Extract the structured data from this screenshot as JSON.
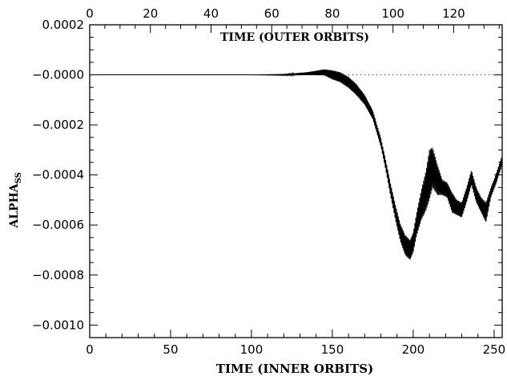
{
  "chart_data": {
    "type": "line",
    "title": "TIME (OUTER ORBITS)",
    "xlabel": "TIME (INNER ORBITS)",
    "ylabel": "ALPHA",
    "ylabel_sub": "SS",
    "xlim": [
      0,
      255
    ],
    "ylim": [
      -0.00105,
      0.0002
    ],
    "x_ticks": [
      0,
      50,
      100,
      150,
      200,
      250
    ],
    "x_tick_labels": [
      "0",
      "50",
      "100",
      "150",
      "200",
      "250"
    ],
    "x2_lim": [
      0,
      136
    ],
    "x2_ticks": [
      0,
      20,
      40,
      60,
      80,
      100,
      120
    ],
    "x2_tick_labels": [
      "0",
      "20",
      "40",
      "60",
      "80",
      "100",
      "120"
    ],
    "y_ticks": [
      0.0002,
      0.0,
      -0.0002,
      -0.0004,
      -0.0006,
      -0.0008,
      -0.001
    ],
    "y_tick_labels": [
      "0.0002",
      "−0.0000",
      "−0.0002",
      "−0.0004",
      "−0.0006",
      "−0.0008",
      "−0.0010"
    ],
    "reference_line": {
      "y": 0.0,
      "x_start": 160,
      "x_end": 255,
      "style": "dotted"
    },
    "grid": false,
    "series": [
      {
        "x": [
          0,
          20,
          40,
          60,
          80,
          100,
          120,
          135,
          145,
          150,
          155,
          160,
          165,
          170,
          175,
          180,
          183,
          186,
          189,
          192,
          195,
          198,
          200,
          202,
          205,
          208,
          210,
          212,
          215,
          218,
          221,
          224,
          227,
          230,
          233,
          236,
          239,
          242,
          245,
          248,
          251,
          254,
          255
        ],
        "y": [
          0.0,
          0.0,
          0.0,
          0.0,
          0.0,
          0.0,
          0.0,
          5e-06,
          1e-05,
          0.0,
          -1e-05,
          -3e-05,
          -6e-05,
          -0.0001,
          -0.00016,
          -0.00027,
          -0.00036,
          -0.00046,
          -0.00055,
          -0.00063,
          -0.00068,
          -0.0007,
          -0.00067,
          -0.0006,
          -0.00052,
          -0.00046,
          -0.0004,
          -0.00037,
          -0.00042,
          -0.00045,
          -0.00046,
          -0.00051,
          -0.00053,
          -0.00054,
          -0.00048,
          -0.00041,
          -0.00048,
          -0.00052,
          -0.00055,
          -0.00047,
          -0.00042,
          -0.00036,
          -0.00034
        ],
        "amplitude": [
          0.0,
          0.0,
          0.0,
          0.0,
          0.0,
          0.0,
          2e-06,
          6e-06,
          1.2e-05,
          1.8e-05,
          2e-05,
          2.2e-05,
          2.2e-05,
          2e-05,
          1.8e-05,
          1.8e-05,
          2e-05,
          2.5e-05,
          3e-05,
          3.5e-05,
          4e-05,
          4e-05,
          4e-05,
          4.5e-05,
          6e-05,
          8e-05,
          0.0001,
          8e-05,
          6e-05,
          3e-05,
          3e-05,
          4e-05,
          3e-05,
          3e-05,
          3e-05,
          3e-05,
          3e-05,
          3e-05,
          4e-05,
          2e-05,
          2e-05,
          2e-05,
          2e-05
        ]
      }
    ]
  }
}
